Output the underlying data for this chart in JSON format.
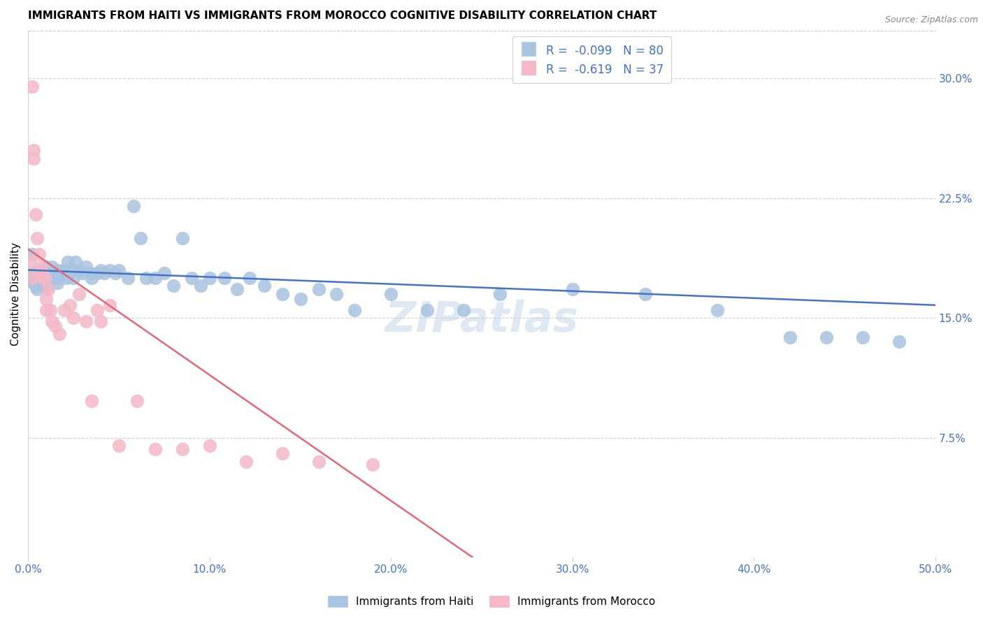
{
  "title": "IMMIGRANTS FROM HAITI VS IMMIGRANTS FROM MOROCCO COGNITIVE DISABILITY CORRELATION CHART",
  "source": "Source: ZipAtlas.com",
  "xlabel_ticks": [
    "0.0%",
    "10.0%",
    "20.0%",
    "30.0%",
    "40.0%",
    "50.0%"
  ],
  "xlabel_vals": [
    0.0,
    0.1,
    0.2,
    0.3,
    0.4,
    0.5
  ],
  "ylabel_ticks": [
    "7.5%",
    "15.0%",
    "22.5%",
    "30.0%"
  ],
  "ylabel_vals": [
    0.075,
    0.15,
    0.225,
    0.3
  ],
  "xlim": [
    0.0,
    0.5
  ],
  "ylim": [
    0.0,
    0.33
  ],
  "ylabel": "Cognitive Disability",
  "haiti_R": -0.099,
  "haiti_N": 80,
  "morocco_R": -0.619,
  "morocco_N": 37,
  "haiti_color": "#a8c4e0",
  "morocco_color": "#f4b8c8",
  "haiti_line_color": "#4472c4",
  "morocco_line_color": "#e06878",
  "legend_label_haiti": "Immigrants from Haiti",
  "legend_label_morocco": "Immigrants from Morocco",
  "haiti_scatter_x": [
    0.001,
    0.002,
    0.002,
    0.003,
    0.003,
    0.004,
    0.004,
    0.005,
    0.005,
    0.006,
    0.006,
    0.007,
    0.007,
    0.008,
    0.008,
    0.009,
    0.009,
    0.01,
    0.01,
    0.011,
    0.011,
    0.012,
    0.012,
    0.013,
    0.013,
    0.014,
    0.015,
    0.016,
    0.016,
    0.017,
    0.018,
    0.019,
    0.02,
    0.021,
    0.022,
    0.024,
    0.025,
    0.026,
    0.028,
    0.03,
    0.032,
    0.034,
    0.035,
    0.038,
    0.04,
    0.042,
    0.045,
    0.048,
    0.05,
    0.055,
    0.058,
    0.062,
    0.065,
    0.07,
    0.075,
    0.08,
    0.085,
    0.09,
    0.095,
    0.1,
    0.108,
    0.115,
    0.122,
    0.13,
    0.14,
    0.15,
    0.16,
    0.17,
    0.18,
    0.2,
    0.22,
    0.24,
    0.26,
    0.3,
    0.34,
    0.38,
    0.42,
    0.44,
    0.46,
    0.48
  ],
  "haiti_scatter_y": [
    0.175,
    0.19,
    0.175,
    0.178,
    0.172,
    0.175,
    0.17,
    0.18,
    0.168,
    0.178,
    0.174,
    0.176,
    0.172,
    0.175,
    0.17,
    0.18,
    0.172,
    0.182,
    0.175,
    0.175,
    0.17,
    0.175,
    0.178,
    0.182,
    0.175,
    0.178,
    0.175,
    0.18,
    0.172,
    0.175,
    0.178,
    0.18,
    0.178,
    0.175,
    0.185,
    0.18,
    0.175,
    0.185,
    0.18,
    0.178,
    0.182,
    0.178,
    0.175,
    0.178,
    0.18,
    0.178,
    0.18,
    0.178,
    0.18,
    0.175,
    0.22,
    0.2,
    0.175,
    0.175,
    0.178,
    0.17,
    0.2,
    0.175,
    0.17,
    0.175,
    0.175,
    0.168,
    0.175,
    0.17,
    0.165,
    0.162,
    0.168,
    0.165,
    0.155,
    0.165,
    0.155,
    0.155,
    0.165,
    0.168,
    0.165,
    0.155,
    0.138,
    0.138,
    0.138,
    0.135
  ],
  "morocco_scatter_x": [
    0.001,
    0.002,
    0.002,
    0.003,
    0.003,
    0.004,
    0.005,
    0.006,
    0.007,
    0.007,
    0.008,
    0.009,
    0.01,
    0.01,
    0.011,
    0.012,
    0.013,
    0.015,
    0.017,
    0.02,
    0.023,
    0.025,
    0.028,
    0.032,
    0.035,
    0.038,
    0.04,
    0.045,
    0.05,
    0.06,
    0.07,
    0.085,
    0.1,
    0.12,
    0.14,
    0.16,
    0.19
  ],
  "morocco_scatter_y": [
    0.185,
    0.295,
    0.175,
    0.255,
    0.25,
    0.215,
    0.2,
    0.19,
    0.182,
    0.178,
    0.175,
    0.175,
    0.162,
    0.155,
    0.168,
    0.155,
    0.148,
    0.145,
    0.14,
    0.155,
    0.158,
    0.15,
    0.165,
    0.148,
    0.098,
    0.155,
    0.148,
    0.158,
    0.07,
    0.098,
    0.068,
    0.068,
    0.07,
    0.06,
    0.065,
    0.06,
    0.058
  ],
  "watermark": "ZIPatlas",
  "title_fontsize": 11,
  "axis_tick_color": "#4472c4",
  "haiti_line_x": [
    0.0,
    0.5
  ],
  "haiti_line_y": [
    0.18,
    0.158
  ],
  "morocco_line_x": [
    0.0,
    0.245
  ],
  "morocco_line_y": [
    0.193,
    0.0
  ]
}
